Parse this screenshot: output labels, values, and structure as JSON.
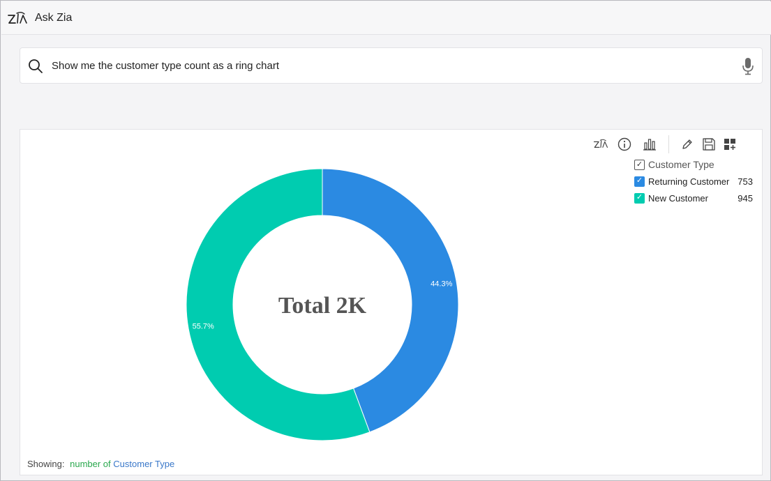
{
  "header": {
    "title": "Ask Zia"
  },
  "search": {
    "query": "Show me the customer type count as a ring chart"
  },
  "toolbar": {
    "buttons": [
      "zia-icon",
      "info-icon",
      "chart-type-icon",
      "edit-icon",
      "save-icon",
      "add-to-dashboard-icon"
    ]
  },
  "legend": {
    "header": "Customer Type",
    "items": [
      {
        "label": "Returning Customer",
        "value": "753",
        "color": "#2b8ae2"
      },
      {
        "label": "New Customer",
        "value": "945",
        "color": "#00ccb0"
      }
    ]
  },
  "footer": {
    "showing_label": "Showing:",
    "measure_text": "number of",
    "dimension_text": "Customer Type"
  },
  "chart_data": {
    "type": "pie",
    "style": "ring",
    "center_label": "Total 2K",
    "categories": [
      "Returning Customer",
      "New Customer"
    ],
    "values": [
      753,
      945
    ],
    "percent_labels": [
      "44.3%",
      "55.7%"
    ],
    "colors": [
      "#2b8ae2",
      "#00ccb0"
    ]
  }
}
